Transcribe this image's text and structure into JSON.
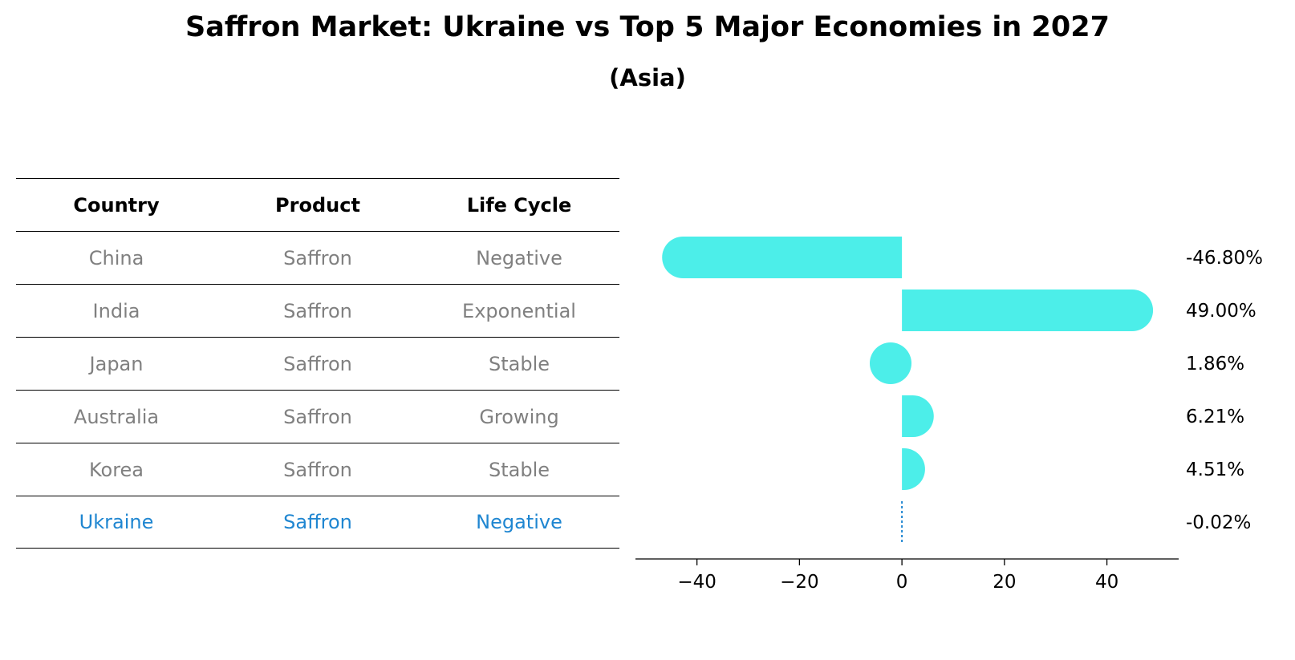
{
  "title": "Saffron Market: Ukraine vs Top 5 Major Economies in 2027",
  "subtitle": "(Asia)",
  "colors": {
    "bar": "#4ceee9",
    "muted_text": "#808080",
    "highlight": "#1f86d1"
  },
  "table": {
    "headers": [
      "Country",
      "Product",
      "Life Cycle"
    ],
    "rows": [
      [
        "China",
        "Saffron",
        "Negative"
      ],
      [
        "India",
        "Saffron",
        "Exponential"
      ],
      [
        "Japan",
        "Saffron",
        "Stable"
      ],
      [
        "Australia",
        "Saffron",
        "Growing"
      ],
      [
        "Korea",
        "Saffron",
        "Stable"
      ],
      [
        "Ukraine",
        "Saffron",
        "Negative"
      ]
    ]
  },
  "chart_data": {
    "type": "bar",
    "orientation": "horizontal",
    "title": "Saffron Market: Ukraine vs Top 5 Major Economies in 2027",
    "subtitle": "(Asia)",
    "categories": [
      "China",
      "India",
      "Japan",
      "Australia",
      "Korea",
      "Ukraine"
    ],
    "values": [
      -46.8,
      49.0,
      1.86,
      6.21,
      4.51,
      -0.02
    ],
    "value_labels": [
      "-46.80%",
      "49.00%",
      "1.86%",
      "6.21%",
      "4.51%",
      "-0.02%"
    ],
    "xlim": [
      -52,
      54
    ],
    "xticks": [
      -40,
      -20,
      0,
      20,
      40
    ],
    "xtick_labels": [
      "−40",
      "−20",
      "0",
      "20",
      "40"
    ],
    "xlabel": "",
    "ylabel": "",
    "grid": false,
    "highlight_category": "Ukraine"
  }
}
